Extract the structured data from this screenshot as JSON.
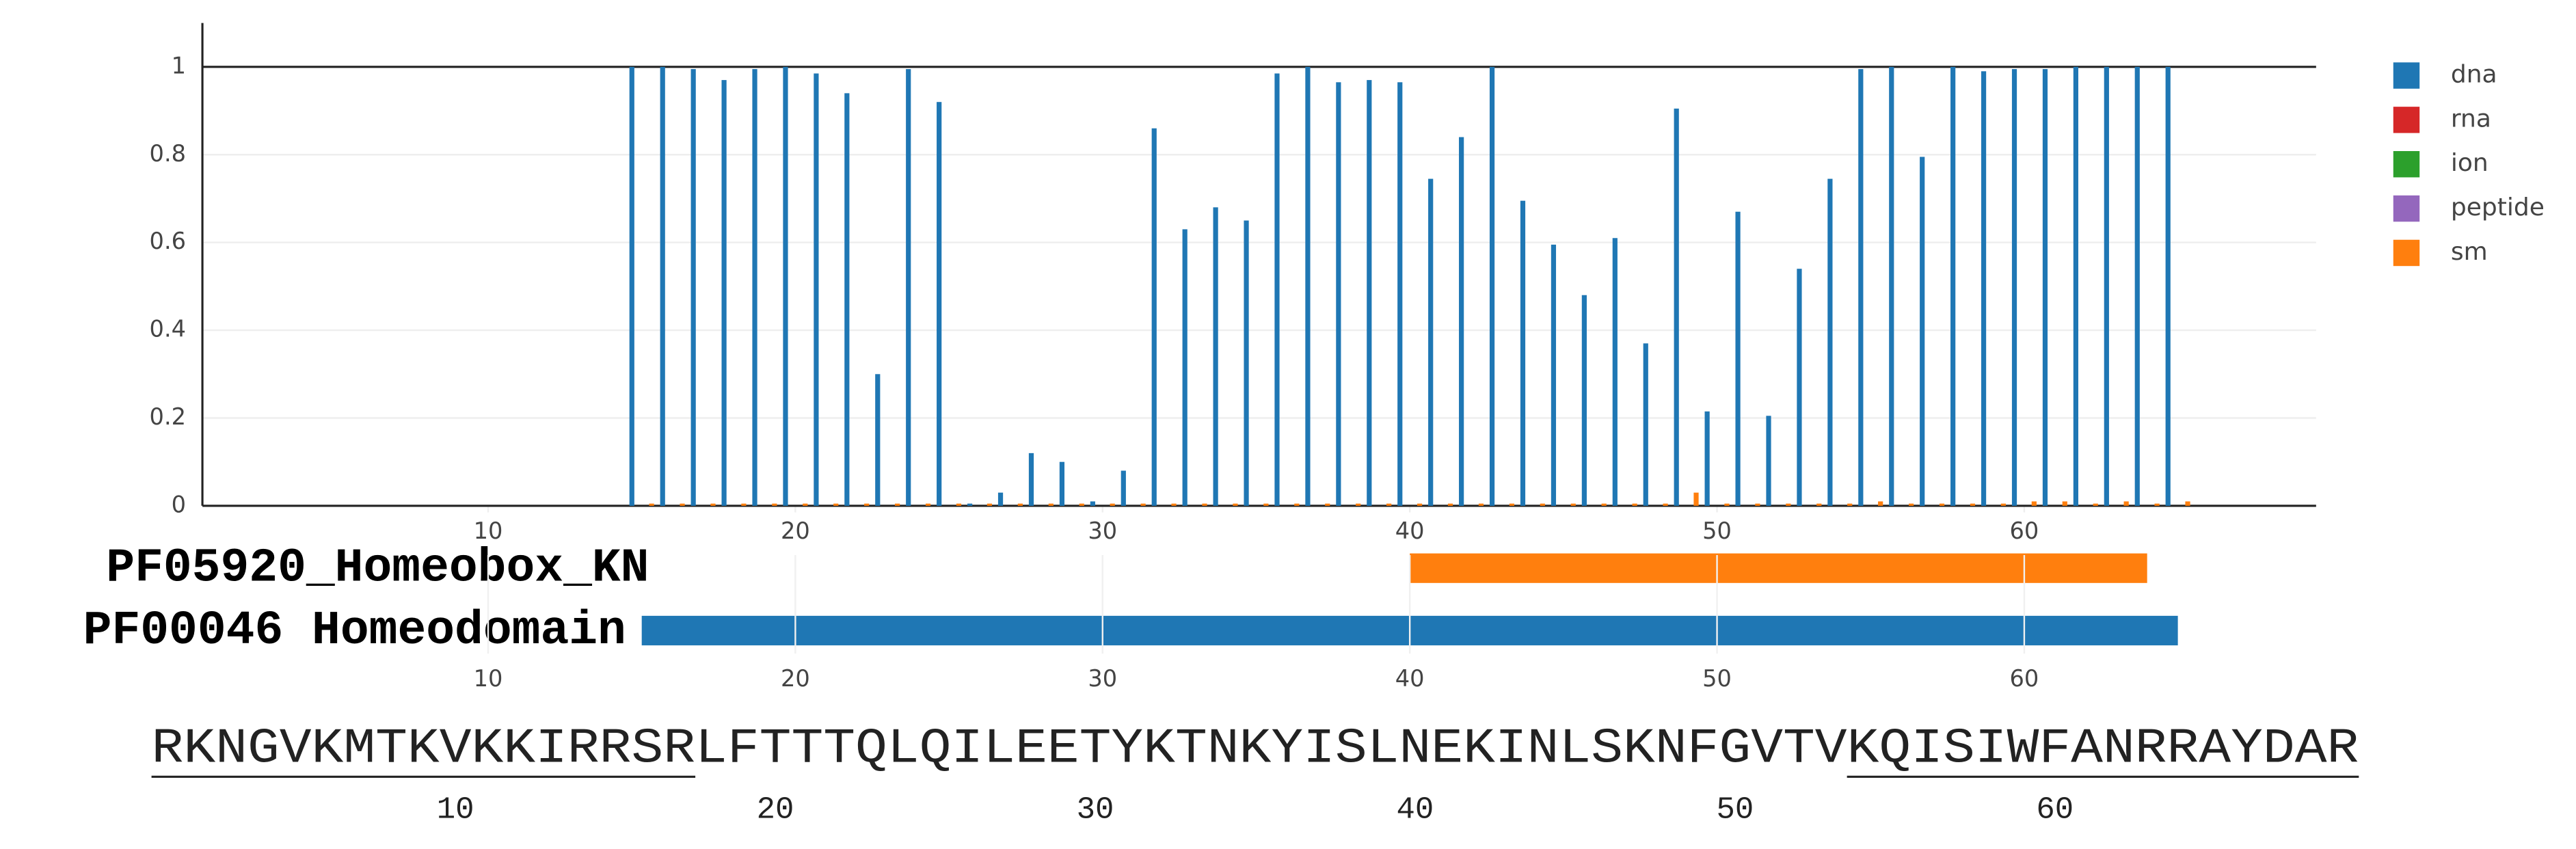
{
  "chart_data": {
    "type": "bar",
    "x": [
      15,
      16,
      17,
      18,
      19,
      20,
      21,
      22,
      23,
      24,
      25,
      26,
      27,
      28,
      29,
      30,
      31,
      32,
      33,
      34,
      35,
      36,
      37,
      38,
      39,
      40,
      41,
      42,
      43,
      44,
      45,
      46,
      47,
      48,
      49,
      50,
      51,
      52,
      53,
      54,
      55,
      56,
      57,
      58,
      59,
      60,
      61,
      62,
      63,
      64,
      65
    ],
    "series": [
      {
        "name": "dna",
        "color": "#1f77b4",
        "values": [
          1.0,
          1.0,
          0.995,
          0.97,
          0.995,
          1.0,
          0.985,
          0.94,
          0.3,
          0.995,
          0.92,
          0.005,
          0.03,
          0.12,
          0.1,
          0.01,
          0.08,
          0.86,
          0.63,
          0.68,
          0.65,
          0.985,
          1.0,
          0.965,
          0.97,
          0.965,
          0.745,
          0.84,
          1.0,
          0.695,
          0.595,
          0.48,
          0.61,
          0.37,
          0.905,
          0.215,
          0.67,
          0.205,
          0.54,
          0.745,
          0.995,
          1.0,
          0.795,
          1.0,
          0.99,
          0.995,
          0.995,
          1.0,
          1.0,
          1.0,
          1.0
        ]
      },
      {
        "name": "rna",
        "color": "#d62728",
        "values": [
          0,
          0,
          0,
          0,
          0,
          0,
          0,
          0,
          0,
          0,
          0,
          0,
          0,
          0,
          0,
          0,
          0,
          0,
          0,
          0,
          0,
          0,
          0,
          0,
          0,
          0,
          0,
          0,
          0,
          0,
          0,
          0,
          0,
          0,
          0,
          0,
          0,
          0,
          0,
          0,
          0,
          0,
          0,
          0,
          0,
          0,
          0,
          0,
          0,
          0,
          0
        ]
      },
      {
        "name": "ion",
        "color": "#2ca02c",
        "values": [
          0,
          0,
          0,
          0,
          0,
          0,
          0,
          0,
          0,
          0,
          0,
          0,
          0,
          0,
          0,
          0,
          0,
          0,
          0,
          0,
          0,
          0,
          0,
          0,
          0,
          0,
          0,
          0,
          0,
          0,
          0,
          0,
          0,
          0,
          0,
          0,
          0,
          0,
          0,
          0,
          0,
          0,
          0,
          0,
          0,
          0,
          0,
          0,
          0,
          0,
          0
        ]
      },
      {
        "name": "peptide",
        "color": "#9467bd",
        "values": [
          0,
          0,
          0,
          0,
          0,
          0,
          0,
          0,
          0,
          0,
          0,
          0,
          0,
          0,
          0,
          0,
          0,
          0,
          0,
          0,
          0,
          0,
          0,
          0,
          0,
          0,
          0,
          0,
          0,
          0,
          0,
          0,
          0,
          0,
          0,
          0,
          0,
          0,
          0,
          0,
          0,
          0,
          0,
          0,
          0,
          0,
          0,
          0,
          0,
          0,
          0
        ]
      },
      {
        "name": "sm",
        "color": "#ff7f0e",
        "values": [
          0.005,
          0.005,
          0.005,
          0.005,
          0.005,
          0.005,
          0.005,
          0.005,
          0.005,
          0.005,
          0.005,
          0.005,
          0.005,
          0.005,
          0.005,
          0.005,
          0.005,
          0.005,
          0.005,
          0.005,
          0.005,
          0.005,
          0.005,
          0.005,
          0.005,
          0.005,
          0.005,
          0.005,
          0.005,
          0.005,
          0.005,
          0.005,
          0.005,
          0.005,
          0.03,
          0.005,
          0.005,
          0.005,
          0.005,
          0.005,
          0.01,
          0.005,
          0.005,
          0.005,
          0.005,
          0.01,
          0.01,
          0.005,
          0.01,
          0.005,
          0.01
        ]
      }
    ],
    "xlim": [
      0.7,
      69.5
    ],
    "xticks": [
      10,
      20,
      30,
      40,
      50,
      60
    ],
    "ylim": [
      0,
      1.1
    ],
    "yticks": [
      0,
      0.2,
      0.4,
      0.6,
      0.8,
      1
    ],
    "grid": true,
    "legend": "top-right"
  },
  "domain_track": {
    "xticks": [
      10,
      20,
      30,
      40,
      50,
      60
    ],
    "domains": [
      {
        "name": "PF05920_Homeobox_KN",
        "start": 40,
        "end": 64,
        "color": "#ff7f0e"
      },
      {
        "name": "PF00046 Homeodomain",
        "start": 15,
        "end": 65,
        "color": "#1f77b4"
      }
    ]
  },
  "sequence": {
    "text": "RKNGVKMTKVKKIRRSRLFTTTQLQILEETYKTNKYISLNEKINLSKNFGVTVKQISIWFANRRAYDAR",
    "ticks": [
      10,
      20,
      30,
      40,
      50,
      60
    ],
    "underlines": [
      [
        1,
        17
      ],
      [
        54,
        69
      ]
    ]
  }
}
